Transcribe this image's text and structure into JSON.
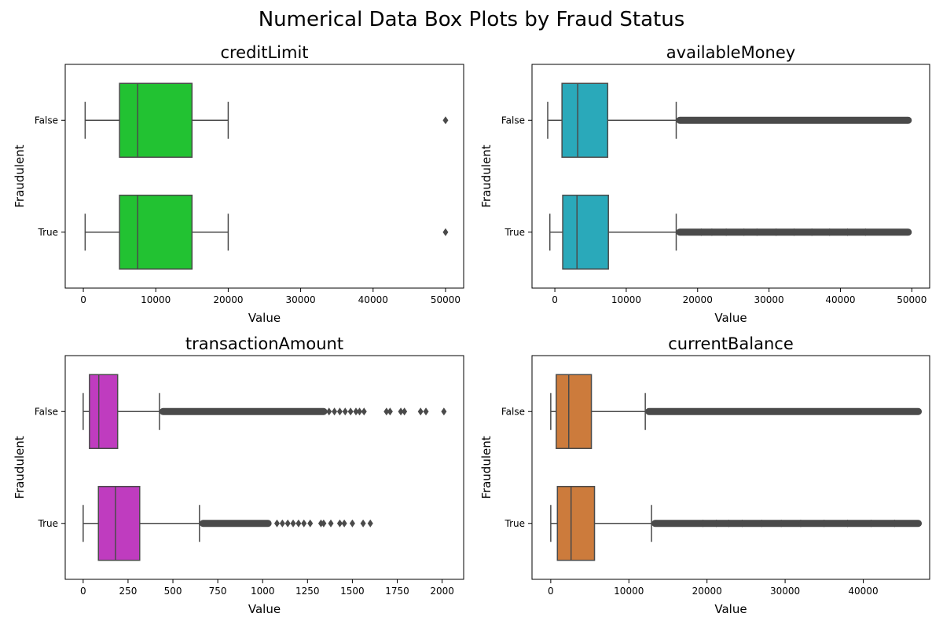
{
  "figure": {
    "title": "Numerical Data Box Plots by Fraud Status"
  },
  "chart_data": [
    {
      "type": "box",
      "title": "creditLimit",
      "xlabel": "Value",
      "ylabel": "Fraudulent",
      "xlim": [
        -2500,
        52500
      ],
      "xticks": [
        0,
        10000,
        20000,
        30000,
        40000,
        50000
      ],
      "categories": [
        "False",
        "True"
      ],
      "color": "#22c232",
      "boxes": [
        {
          "category": "False",
          "whisker_low": 250,
          "q1": 5000,
          "median": 7500,
          "q3": 15000,
          "whisker_high": 20000,
          "outliers": [
            50000
          ],
          "outlier_band": []
        },
        {
          "category": "True",
          "whisker_low": 250,
          "q1": 5000,
          "median": 7500,
          "q3": 15000,
          "whisker_high": 20000,
          "outliers": [
            50000
          ],
          "outlier_band": []
        }
      ]
    },
    {
      "type": "box",
      "title": "availableMoney",
      "xlabel": "Value",
      "ylabel": "Fraudulent",
      "xlim": [
        -3200,
        52500
      ],
      "xticks": [
        0,
        10000,
        20000,
        30000,
        40000,
        50000
      ],
      "categories": [
        "False",
        "True"
      ],
      "color": "#2aa9ba",
      "boxes": [
        {
          "category": "False",
          "whisker_low": -1000,
          "q1": 1000,
          "median": 3200,
          "q3": 7400,
          "whisker_high": 17000,
          "outliers": [],
          "outlier_band": [
            17000,
            50000
          ]
        },
        {
          "category": "True",
          "whisker_low": -700,
          "q1": 1100,
          "median": 3100,
          "q3": 7500,
          "whisker_high": 17000,
          "outliers": [
            20500,
            22000,
            24000,
            26500,
            28300,
            31000,
            33500,
            36000,
            38500,
            41000,
            43500
          ],
          "outlier_band": [
            17000,
            50000
          ]
        }
      ]
    },
    {
      "type": "box",
      "title": "transactionAmount",
      "xlabel": "Value",
      "ylabel": "Fraudulent",
      "xlim": [
        -100,
        2120
      ],
      "xticks": [
        0,
        250,
        500,
        750,
        1000,
        1250,
        1500,
        1750,
        2000
      ],
      "categories": [
        "False",
        "True"
      ],
      "color": "#bf3cbf",
      "boxes": [
        {
          "category": "False",
          "whisker_low": 0,
          "q1": 35,
          "median": 87,
          "q3": 192,
          "whisker_high": 425,
          "outliers": [
            1370,
            1400,
            1430,
            1460,
            1490,
            1520,
            1540,
            1565,
            1690,
            1710,
            1770,
            1790,
            1880,
            1910,
            2010
          ],
          "outlier_band": [
            425,
            1360
          ]
        },
        {
          "category": "True",
          "whisker_low": 0,
          "q1": 85,
          "median": 180,
          "q3": 315,
          "whisker_high": 648,
          "outliers": [
            1080,
            1110,
            1140,
            1170,
            1200,
            1230,
            1265,
            1325,
            1340,
            1380,
            1430,
            1455,
            1500,
            1560,
            1600
          ],
          "outlier_band": [
            648,
            1050
          ]
        }
      ]
    },
    {
      "type": "box",
      "title": "currentBalance",
      "xlabel": "Value",
      "ylabel": "Fraudulent",
      "xlim": [
        -2400,
        48500
      ],
      "xticks": [
        0,
        10000,
        20000,
        30000,
        40000
      ],
      "categories": [
        "False",
        "True"
      ],
      "color": "#cc7b3c",
      "boxes": [
        {
          "category": "False",
          "whisker_low": 0,
          "q1": 700,
          "median": 2300,
          "q3": 5200,
          "whisker_high": 12100,
          "outliers": [],
          "outlier_band": [
            12100,
            47500
          ]
        },
        {
          "category": "True",
          "whisker_low": 0,
          "q1": 850,
          "median": 2600,
          "q3": 5600,
          "whisker_high": 12900,
          "outliers": [
            19500,
            21200,
            22800,
            24500,
            27000,
            29500,
            32000,
            35000,
            38000,
            41000,
            44000
          ],
          "outlier_band": [
            12900,
            47500
          ]
        }
      ]
    }
  ]
}
